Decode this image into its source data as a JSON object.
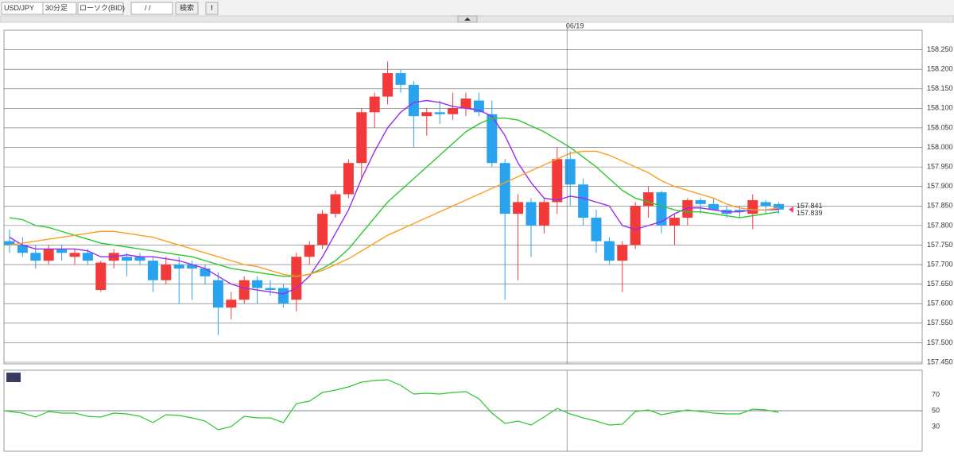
{
  "toolbar": {
    "pair": "USD/JPY",
    "interval": "30分足",
    "chart_style": "ローソク(BID)",
    "date_placeholder": "/ /",
    "search": "検索",
    "info": "!"
  },
  "chart_data": [
    {
      "type": "candlestick",
      "categories": [
        null,
        null,
        null,
        null,
        null,
        null,
        null,
        null,
        null,
        null,
        null,
        null,
        null,
        null,
        null,
        null,
        null,
        null,
        null,
        null,
        null,
        null,
        null,
        null,
        null,
        null,
        null,
        null,
        null,
        null,
        null,
        null,
        null,
        null,
        null,
        null,
        null,
        null,
        null,
        null,
        null,
        null,
        null,
        "06/19",
        null,
        null,
        null,
        null,
        null,
        null,
        null,
        null,
        null,
        null,
        null,
        null,
        null,
        null,
        null,
        null
      ],
      "open": [
        157.76,
        157.75,
        157.73,
        157.71,
        157.74,
        157.72,
        157.73,
        157.635,
        157.71,
        157.72,
        157.72,
        157.71,
        157.66,
        157.7,
        157.7,
        157.69,
        157.66,
        157.59,
        157.61,
        157.66,
        157.64,
        157.64,
        157.61,
        157.72,
        157.75,
        157.83,
        157.88,
        157.96,
        158.09,
        158.13,
        158.19,
        158.16,
        158.08,
        158.09,
        158.085,
        158.1,
        158.12,
        158.085,
        157.96,
        157.83,
        157.86,
        157.8,
        157.86,
        157.97,
        157.905,
        157.82,
        157.76,
        157.71,
        157.75,
        157.85,
        157.885,
        157.8,
        157.82,
        157.865,
        157.855,
        157.84,
        157.84,
        157.83,
        157.86,
        157.855
      ],
      "high": [
        157.79,
        157.77,
        157.75,
        157.75,
        157.75,
        157.74,
        157.74,
        157.71,
        157.74,
        157.73,
        157.73,
        157.72,
        157.72,
        157.72,
        157.71,
        157.7,
        157.68,
        157.63,
        157.67,
        157.67,
        157.66,
        157.65,
        157.73,
        157.76,
        157.84,
        157.89,
        157.97,
        158.1,
        158.14,
        158.22,
        158.2,
        158.17,
        158.1,
        158.12,
        158.14,
        158.14,
        158.14,
        158.12,
        157.97,
        157.88,
        157.87,
        157.87,
        158.0,
        157.99,
        157.92,
        157.84,
        157.77,
        157.76,
        157.86,
        157.9,
        157.89,
        157.83,
        157.87,
        157.87,
        157.87,
        157.85,
        157.85,
        157.88,
        157.865,
        157.86
      ],
      "low": [
        157.73,
        157.72,
        157.69,
        157.7,
        157.71,
        157.7,
        157.7,
        157.63,
        157.69,
        157.67,
        157.7,
        157.63,
        157.65,
        157.6,
        157.61,
        157.65,
        157.52,
        157.56,
        157.6,
        157.6,
        157.62,
        157.59,
        157.58,
        157.7,
        157.74,
        157.82,
        157.87,
        157.92,
        158.05,
        158.11,
        158.14,
        158.0,
        158.03,
        158.06,
        158.07,
        158.08,
        158.08,
        157.95,
        157.61,
        157.66,
        157.72,
        157.78,
        157.83,
        157.85,
        157.8,
        157.73,
        157.7,
        157.63,
        157.74,
        157.82,
        157.78,
        157.75,
        157.8,
        157.83,
        157.84,
        157.82,
        157.82,
        157.79,
        157.83,
        157.83
      ],
      "close": [
        157.75,
        157.73,
        157.71,
        157.74,
        157.73,
        157.73,
        157.71,
        157.705,
        157.73,
        157.71,
        157.71,
        157.66,
        157.7,
        157.69,
        157.69,
        157.67,
        157.59,
        157.61,
        157.66,
        157.64,
        157.635,
        157.6,
        157.72,
        157.75,
        157.83,
        157.88,
        157.96,
        158.09,
        158.13,
        158.19,
        158.16,
        158.08,
        158.09,
        158.085,
        158.1,
        158.125,
        158.09,
        157.96,
        157.83,
        157.86,
        157.8,
        157.86,
        157.97,
        157.905,
        157.82,
        157.76,
        157.71,
        157.75,
        157.85,
        157.885,
        157.8,
        157.82,
        157.865,
        157.855,
        157.84,
        157.83,
        157.835,
        157.865,
        157.85,
        157.841
      ],
      "up_color": "#f23a3a",
      "down_color": "#2aa3ef",
      "lines": [
        {
          "color": "#9a2cf0",
          "values": [
            157.77,
            157.75,
            157.74,
            157.74,
            157.74,
            157.74,
            157.735,
            157.72,
            157.72,
            157.725,
            157.72,
            157.72,
            157.715,
            157.71,
            157.7,
            157.69,
            157.67,
            157.65,
            157.64,
            157.635,
            157.63,
            157.625,
            157.64,
            157.67,
            157.72,
            157.78,
            157.84,
            157.92,
            157.99,
            158.05,
            158.09,
            158.115,
            158.12,
            158.115,
            158.105,
            158.1,
            158.095,
            158.08,
            158.03,
            157.96,
            157.91,
            157.87,
            157.865,
            157.875,
            157.87,
            157.86,
            157.85,
            157.8,
            157.79,
            157.8,
            157.81,
            157.83,
            157.845,
            157.845,
            157.84,
            157.835,
            157.835,
            157.84,
            157.84,
            157.841
          ]
        },
        {
          "color": "#2cc82c",
          "values": [
            157.82,
            157.815,
            157.8,
            157.795,
            157.785,
            157.775,
            157.765,
            157.755,
            157.75,
            157.745,
            157.74,
            157.735,
            157.73,
            157.725,
            157.72,
            157.71,
            157.7,
            157.69,
            157.685,
            157.68,
            157.675,
            157.67,
            157.67,
            157.675,
            157.69,
            157.71,
            157.74,
            157.78,
            157.82,
            157.86,
            157.89,
            157.92,
            157.95,
            157.98,
            158.01,
            158.04,
            158.06,
            158.075,
            158.075,
            158.07,
            158.055,
            158.04,
            158.02,
            158.0,
            157.975,
            157.95,
            157.92,
            157.89,
            157.87,
            157.86,
            157.85,
            157.84,
            157.835,
            157.835,
            157.83,
            157.825,
            157.82,
            157.825,
            157.83,
            157.835
          ]
        },
        {
          "color": "#ff9c24",
          "values": [
            157.75,
            157.755,
            157.76,
            157.765,
            157.77,
            157.775,
            157.78,
            157.785,
            157.785,
            157.78,
            157.775,
            157.77,
            157.76,
            157.75,
            157.74,
            157.73,
            157.72,
            157.71,
            157.7,
            157.695,
            157.685,
            157.675,
            157.67,
            157.675,
            157.685,
            157.7,
            157.715,
            157.735,
            157.755,
            157.775,
            157.79,
            157.805,
            157.82,
            157.835,
            157.85,
            157.865,
            157.88,
            157.895,
            157.91,
            157.925,
            157.94,
            157.955,
            157.97,
            157.985,
            157.99,
            157.99,
            157.98,
            157.965,
            157.95,
            157.935,
            157.915,
            157.9,
            157.89,
            157.88,
            157.87,
            157.855,
            157.845,
            157.84,
            157.84,
            157.845
          ]
        }
      ],
      "price_markers": [
        {
          "value": 157.841,
          "color": "#f0407a"
        },
        {
          "value": 157.839,
          "color": "#33b5e5"
        }
      ],
      "ylim": [
        157.45,
        158.3
      ],
      "yticks": [
        {
          "value": 157.45,
          "label": "157.450"
        },
        {
          "value": 157.5,
          "label": "157.500"
        },
        {
          "value": 157.55,
          "label": "157.550"
        },
        {
          "value": 157.6,
          "label": "157.600"
        },
        {
          "value": 157.65,
          "label": "157.650"
        },
        {
          "value": 157.7,
          "label": "157.700"
        },
        {
          "value": 157.75,
          "label": "157.750"
        },
        {
          "value": 157.8,
          "label": "157.800"
        },
        {
          "value": 157.85,
          "label": "157.850"
        },
        {
          "value": 157.9,
          "label": "157.900"
        },
        {
          "value": 157.95,
          "label": "157.950"
        },
        {
          "value": 158,
          "label": "158.000"
        },
        {
          "value": 158.05,
          "label": "158.050"
        },
        {
          "value": 158.1,
          "label": "158.100"
        },
        {
          "value": 158.15,
          "label": "158.150"
        },
        {
          "value": 158.2,
          "label": "158.200"
        },
        {
          "value": 158.25,
          "label": "158.250"
        }
      ],
      "grid": true
    },
    {
      "type": "line",
      "title": "RSI",
      "color": "#2cc82c",
      "values": [
        50,
        47,
        42,
        49,
        47,
        47,
        43,
        42,
        47,
        46,
        43,
        35,
        45,
        44,
        41,
        37,
        26,
        30,
        43,
        41,
        41,
        35,
        59,
        62,
        73,
        76,
        80,
        86,
        88,
        89,
        82,
        71,
        72,
        71,
        73,
        74,
        65,
        47,
        34,
        37,
        32,
        42,
        53,
        46,
        41,
        37,
        32,
        33,
        49,
        51,
        45,
        48,
        51,
        49,
        47,
        46,
        46,
        52,
        51,
        48
      ],
      "ylim": [
        0,
        100
      ],
      "yticks": [
        30,
        50,
        70
      ],
      "reference": 50
    }
  ]
}
